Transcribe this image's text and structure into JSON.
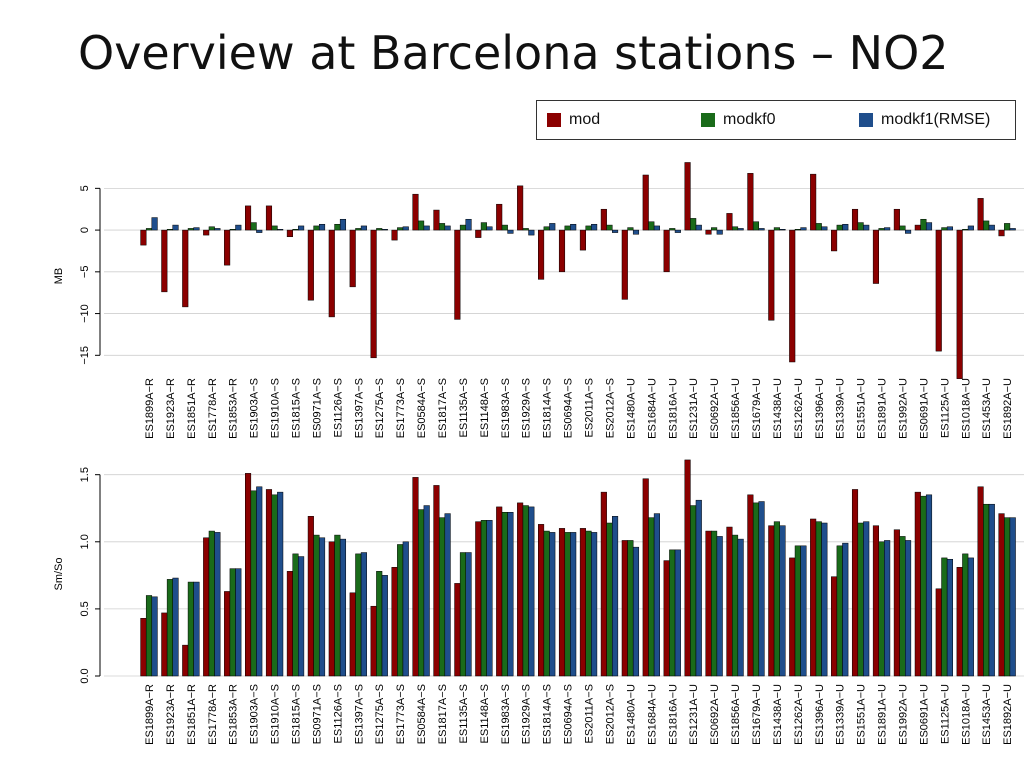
{
  "page": {
    "title": "Overview at Barcelona stations – NO2"
  },
  "legend": {
    "items": [
      {
        "label": "mod",
        "color": "#8b0000"
      },
      {
        "label": "modkf0",
        "color": "#1a6b1a"
      },
      {
        "label": "modkf1(RMSE)",
        "color": "#1f4e8c"
      }
    ]
  },
  "chart_data": [
    {
      "type": "bar",
      "ylabel": "MB",
      "ylim": [
        -17,
        6
      ],
      "yticks": [
        5,
        0,
        -5,
        -10,
        -15
      ],
      "grid": true,
      "categories": [
        "ES1899A-R",
        "ES1923A-R",
        "ES1851A-R",
        "ES1778A-R",
        "ES1853A-R",
        "ES1903A-S",
        "ES1910A-S",
        "ES1815A-S",
        "ES0971A-S",
        "ES1126A-S",
        "ES1397A-S",
        "ES1275A-S",
        "ES1773A-S",
        "ES0584A-S",
        "ES1817A-S",
        "ES1135A-S",
        "ES1148A-S",
        "ES1983A-S",
        "ES1929A-S",
        "ES1814A-S",
        "ES0694A-S",
        "ES2011A-S",
        "ES2012A-S",
        "ES1480A-U",
        "ES1684A-U",
        "ES1816A-U",
        "ES1231A-U",
        "ES0692A-U",
        "ES1856A-U",
        "ES1679A-U",
        "ES1438A-U",
        "ES1262A-U",
        "ES1396A-U",
        "ES1339A-U",
        "ES1551A-U",
        "ES1891A-U",
        "ES1992A-U",
        "ES0691A-U",
        "ES1125A-U",
        "ES1018A-U",
        "ES1453A-U",
        "ES1892A-U"
      ],
      "series": [
        {
          "name": "mod",
          "values": [
            -1.8,
            -7.4,
            -9.2,
            -0.6,
            -4.2,
            2.9,
            2.9,
            -0.8,
            -8.4,
            -10.4,
            -6.8,
            -15.3,
            -1.2,
            4.3,
            2.4,
            -10.7,
            -0.9,
            3.1,
            5.3,
            -5.9,
            -5.0,
            -2.4,
            2.5,
            -8.3,
            6.6,
            -5.0,
            8.1,
            -0.5,
            2.0,
            6.8,
            -10.8,
            -15.8,
            6.7,
            -2.5,
            2.5,
            -6.4,
            2.5,
            0.6,
            -14.5,
            -17.8,
            3.8,
            -0.7
          ]
        },
        {
          "name": "modkf0",
          "values": [
            0.2,
            0.1,
            0.2,
            0.4,
            0.1,
            0.9,
            0.5,
            0.1,
            0.5,
            0.7,
            0.2,
            0.2,
            0.3,
            1.1,
            0.8,
            0.6,
            0.9,
            0.6,
            0.2,
            0.4,
            0.5,
            0.5,
            0.6,
            0.3,
            1.0,
            0.2,
            1.4,
            0.3,
            0.4,
            1.0,
            0.3,
            0.1,
            0.8,
            0.6,
            0.9,
            0.2,
            0.5,
            1.3,
            0.3,
            0.1,
            1.1,
            0.8
          ]
        },
        {
          "name": "modkf1(RMSE)",
          "values": [
            1.5,
            0.6,
            0.3,
            0.2,
            0.6,
            -0.3,
            0.1,
            0.5,
            0.7,
            1.3,
            0.5,
            0.1,
            0.4,
            0.5,
            0.5,
            1.3,
            0.4,
            -0.4,
            -0.6,
            0.8,
            0.7,
            0.7,
            -0.3,
            -0.5,
            0.5,
            -0.3,
            0.6,
            -0.5,
            0.2,
            0.2,
            0.1,
            0.3,
            0.4,
            0.7,
            0.6,
            0.3,
            -0.4,
            0.9,
            0.4,
            0.5,
            0.6,
            0.2
          ]
        }
      ]
    },
    {
      "type": "bar",
      "ylabel": "Sm/So",
      "ylim": [
        0,
        1.52
      ],
      "yticks": [
        0.0,
        0.5,
        1.0,
        1.5
      ],
      "grid": true,
      "categories": [
        "ES1899A-R",
        "ES1923A-R",
        "ES1851A-R",
        "ES1778A-R",
        "ES1853A-R",
        "ES1903A-S",
        "ES1910A-S",
        "ES1815A-S",
        "ES0971A-S",
        "ES1126A-S",
        "ES1397A-S",
        "ES1275A-S",
        "ES1773A-S",
        "ES0584A-S",
        "ES1817A-S",
        "ES1135A-S",
        "ES1148A-S",
        "ES1983A-S",
        "ES1929A-S",
        "ES1814A-S",
        "ES0694A-S",
        "ES2011A-S",
        "ES2012A-S",
        "ES1480A-U",
        "ES1684A-U",
        "ES1816A-U",
        "ES1231A-U",
        "ES0692A-U",
        "ES1856A-U",
        "ES1679A-U",
        "ES1438A-U",
        "ES1262A-U",
        "ES1396A-U",
        "ES1339A-U",
        "ES1551A-U",
        "ES1891A-U",
        "ES1992A-U",
        "ES0691A-U",
        "ES1125A-U",
        "ES1018A-U",
        "ES1453A-U",
        "ES1892A-U"
      ],
      "series": [
        {
          "name": "mod",
          "values": [
            0.43,
            0.47,
            0.23,
            1.03,
            0.63,
            1.51,
            1.39,
            0.78,
            1.19,
            1.0,
            0.62,
            0.52,
            0.81,
            1.48,
            1.42,
            0.69,
            1.15,
            1.26,
            1.29,
            1.13,
            1.1,
            1.1,
            1.37,
            1.01,
            1.47,
            0.86,
            1.61,
            1.08,
            1.11,
            1.35,
            1.12,
            0.88,
            1.17,
            0.74,
            1.39,
            1.12,
            1.09,
            1.37,
            0.65,
            0.81,
            1.41,
            1.21
          ]
        },
        {
          "name": "modkf0",
          "values": [
            0.6,
            0.72,
            0.7,
            1.08,
            0.8,
            1.38,
            1.35,
            0.91,
            1.05,
            1.05,
            0.91,
            0.78,
            0.98,
            1.24,
            1.18,
            0.92,
            1.16,
            1.22,
            1.27,
            1.08,
            1.07,
            1.08,
            1.14,
            1.01,
            1.18,
            0.94,
            1.27,
            1.08,
            1.05,
            1.29,
            1.15,
            0.97,
            1.15,
            0.97,
            1.14,
            1.0,
            1.04,
            1.34,
            0.88,
            0.91,
            1.28,
            1.18
          ]
        },
        {
          "name": "modkf1(RMSE)",
          "values": [
            0.59,
            0.73,
            0.7,
            1.07,
            0.8,
            1.41,
            1.37,
            0.89,
            1.03,
            1.02,
            0.92,
            0.75,
            1.0,
            1.27,
            1.21,
            0.92,
            1.16,
            1.22,
            1.26,
            1.07,
            1.07,
            1.07,
            1.19,
            0.96,
            1.21,
            0.94,
            1.31,
            1.04,
            1.02,
            1.3,
            1.12,
            0.97,
            1.14,
            0.99,
            1.15,
            1.01,
            1.01,
            1.35,
            0.87,
            0.88,
            1.28,
            1.18
          ]
        }
      ]
    }
  ]
}
